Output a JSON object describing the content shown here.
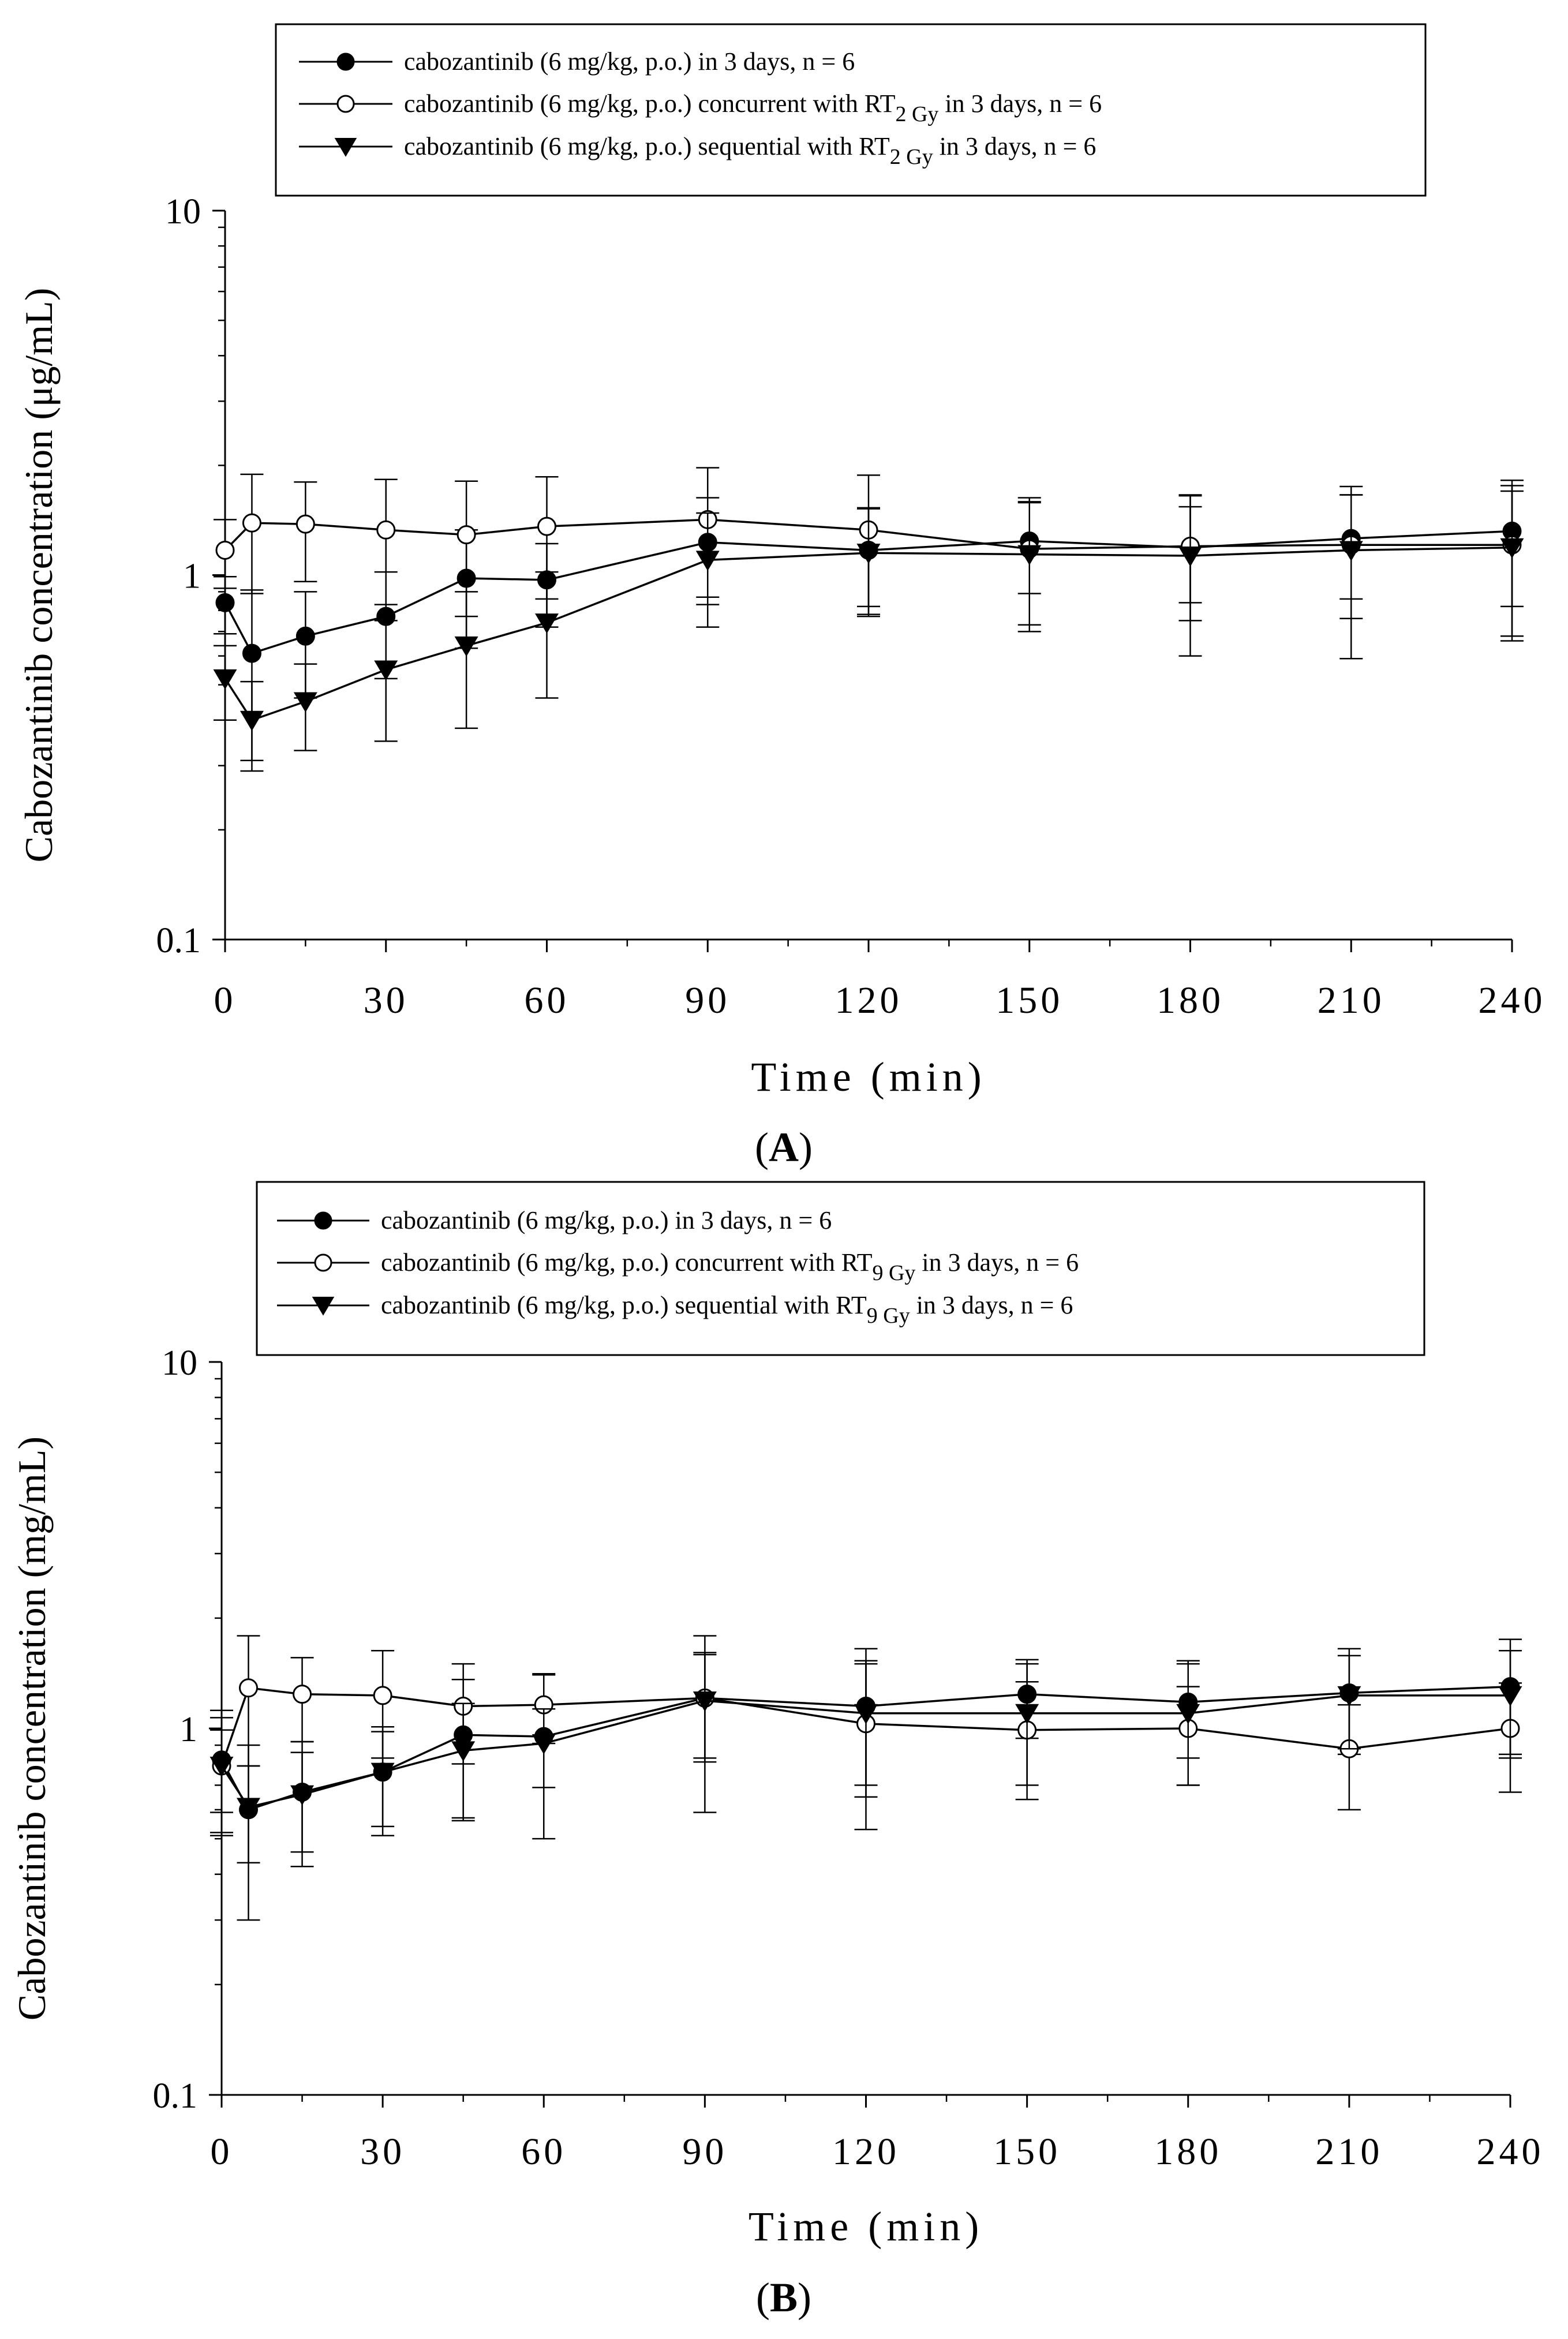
{
  "chart_data": [
    {
      "type": "line",
      "panel_label": "A",
      "ylabel": "Cabozantinib concentration (μg/mL)",
      "xlabel": "Time (min)",
      "yscale": "log",
      "ylim": [
        0.1,
        10
      ],
      "xlim": [
        0,
        240
      ],
      "x_ticks": [
        0,
        30,
        60,
        90,
        120,
        150,
        180,
        210,
        240
      ],
      "y_ticks": [
        0.1,
        1,
        10
      ],
      "y_tick_labels": [
        "0.1",
        "1",
        "10"
      ],
      "x": [
        0,
        5,
        15,
        30,
        45,
        60,
        90,
        120,
        150,
        180,
        210,
        240
      ],
      "legend": {
        "position": "top",
        "entries": [
          {
            "marker": "filled-circle",
            "text": "cabozantinib (6 mg/kg, p.o.) in 3 days, n = 6",
            "sub": "",
            "tail": ""
          },
          {
            "marker": "open-circle",
            "text": "cabozantinib (6 mg/kg, p.o.) concurrent with RT",
            "sub": "2 Gy",
            "tail": " in 3 days, n = 6"
          },
          {
            "marker": "filled-triangle-down",
            "text": "cabozantinib (6 mg/kg, p.o.) sequential with RT",
            "sub": "2 Gy",
            "tail": " in 3 days, n = 6"
          }
        ]
      },
      "series": [
        {
          "name": "cabozantinib alone",
          "marker": "filled-circle",
          "values": [
            0.84,
            0.61,
            0.68,
            0.77,
            0.98,
            0.97,
            1.23,
            1.17,
            1.24,
            1.19,
            1.26,
            1.32
          ],
          "err": [
            0.15,
            0.3,
            0.22,
            0.25,
            0.35,
            0.25,
            0.4,
            0.35,
            0.35,
            0.35,
            0.4,
            0.5
          ]
        },
        {
          "name": "concurrent with RT 2 Gy",
          "marker": "open-circle",
          "values": [
            1.17,
            1.39,
            1.38,
            1.33,
            1.29,
            1.36,
            1.42,
            1.33,
            1.18,
            1.2,
            1.21,
            1.21
          ],
          "err": [
            0.25,
            0.5,
            0.42,
            0.5,
            0.52,
            0.5,
            0.55,
            0.55,
            0.45,
            0.45,
            0.45,
            0.55
          ]
        },
        {
          "name": "sequential with RT 2 Gy",
          "marker": "filled-triangle-down",
          "values": [
            0.52,
            0.4,
            0.45,
            0.55,
            0.64,
            0.74,
            1.1,
            1.15,
            1.14,
            1.13,
            1.17,
            1.19
          ],
          "err": [
            0.12,
            0.11,
            0.12,
            0.2,
            0.26,
            0.28,
            0.38,
            0.38,
            0.44,
            0.53,
            0.58,
            0.51
          ]
        }
      ]
    },
    {
      "type": "line",
      "panel_label": "B",
      "ylabel": "Cabozantinib concentration (mg/mL)",
      "xlabel": "Time (min)",
      "yscale": "log",
      "ylim": [
        0.1,
        10
      ],
      "xlim": [
        0,
        240
      ],
      "x_ticks": [
        0,
        30,
        60,
        90,
        120,
        150,
        180,
        210,
        240
      ],
      "y_ticks": [
        0.1,
        1,
        10
      ],
      "y_tick_labels": [
        "0.1",
        "1",
        "10"
      ],
      "x": [
        0,
        5,
        15,
        30,
        45,
        60,
        90,
        120,
        150,
        180,
        210,
        240
      ],
      "legend": {
        "position": "top",
        "entries": [
          {
            "marker": "filled-circle",
            "text": "cabozantinib (6 mg/kg, p.o.) in 3 days, n = 6",
            "sub": "",
            "tail": ""
          },
          {
            "marker": "open-circle",
            "text": "cabozantinib (6 mg/kg, p.o.) concurrent with RT",
            "sub": "9 Gy",
            "tail": " in 3 days, n = 6"
          },
          {
            "marker": "filled-triangle-down",
            "text": "cabozantinib (6 mg/kg, p.o.) sequential with RT",
            "sub": "9 Gy",
            "tail": " in 3 days, n = 6"
          }
        ]
      },
      "series": [
        {
          "name": "cabozantinib alone",
          "marker": "filled-circle",
          "values": [
            0.82,
            0.6,
            0.67,
            0.76,
            0.96,
            0.95,
            1.21,
            1.15,
            1.24,
            1.18,
            1.25,
            1.3
          ],
          "err": [
            0.3,
            0.3,
            0.25,
            0.25,
            0.4,
            0.45,
            0.38,
            0.5,
            0.3,
            0.35,
            0.4,
            0.45
          ]
        },
        {
          "name": "concurrent with RT 9 Gy",
          "marker": "open-circle",
          "values": [
            0.79,
            1.29,
            1.24,
            1.23,
            1.15,
            1.16,
            1.21,
            1.03,
            0.99,
            1.0,
            0.88,
            1.0
          ],
          "err": [
            0.28,
            0.5,
            0.32,
            0.4,
            0.35,
            0.25,
            0.4,
            0.5,
            0.35,
            0.3,
            0.28,
            0.33
          ]
        },
        {
          "name": "sequential with RT 9 Gy",
          "marker": "filled-triangle-down",
          "values": [
            0.79,
            0.61,
            0.66,
            0.76,
            0.87,
            0.91,
            1.19,
            1.1,
            1.1,
            1.1,
            1.23,
            1.23
          ],
          "err": [
            0.2,
            0.18,
            0.2,
            0.22,
            0.3,
            0.22,
            0.6,
            0.4,
            0.4,
            0.4,
            0.35,
            0.4
          ]
        }
      ]
    }
  ]
}
